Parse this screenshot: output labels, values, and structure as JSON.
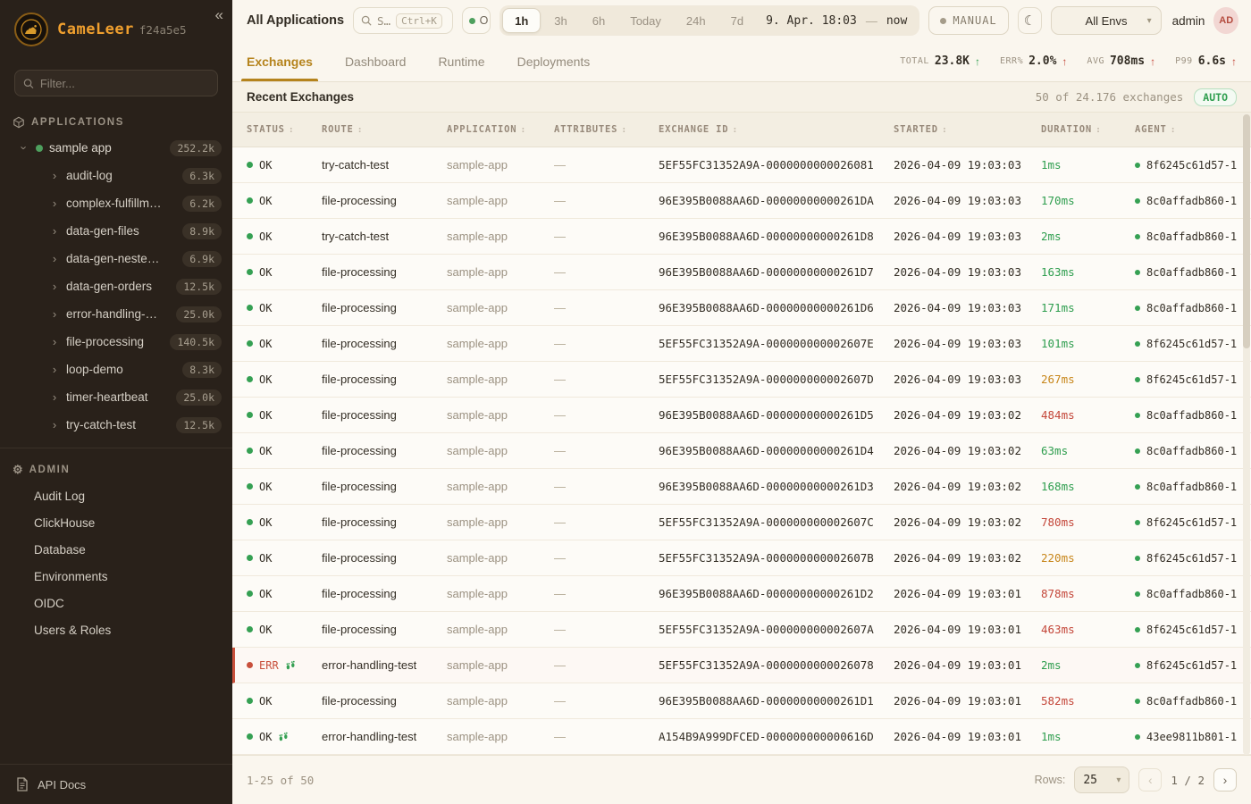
{
  "icons": {
    "collapse": "«",
    "moon": "☾",
    "gear": "⚙",
    "caret_down": "▾",
    "chevron": "›",
    "prev": "‹",
    "next": "›",
    "sort": ":",
    "up_arrow": "↑"
  },
  "sidebar": {
    "logo_text": "CameLeer",
    "logo_suffix": "f24a5e5",
    "filter_placeholder": "Filter...",
    "applications_header": "APPLICATIONS",
    "app_tree": [
      {
        "label": "sample app",
        "count": "252.2k",
        "type": "parent"
      },
      {
        "label": "audit-log",
        "count": "6.3k",
        "type": "child"
      },
      {
        "label": "complex-fulfillm…",
        "count": "6.2k",
        "type": "child"
      },
      {
        "label": "data-gen-files",
        "count": "8.9k",
        "type": "child"
      },
      {
        "label": "data-gen-neste…",
        "count": "6.9k",
        "type": "child"
      },
      {
        "label": "data-gen-orders",
        "count": "12.5k",
        "type": "child"
      },
      {
        "label": "error-handling-…",
        "count": "25.0k",
        "type": "child"
      },
      {
        "label": "file-processing",
        "count": "140.5k",
        "type": "child"
      },
      {
        "label": "loop-demo",
        "count": "8.3k",
        "type": "child"
      },
      {
        "label": "timer-heartbeat",
        "count": "25.0k",
        "type": "child"
      },
      {
        "label": "try-catch-test",
        "count": "12.5k",
        "type": "child"
      }
    ],
    "admin_header": "ADMIN",
    "admin_items": [
      "Audit Log",
      "ClickHouse",
      "Database",
      "Environments",
      "OIDC",
      "Users & Roles"
    ],
    "api_docs_label": "API Docs"
  },
  "topbar": {
    "scope": "All Applications",
    "search_text": "S…",
    "search_kbd": "Ctrl+K",
    "live_text": "O",
    "ranges": [
      "1h",
      "3h",
      "6h",
      "Today",
      "24h",
      "7d"
    ],
    "active_range": "1h",
    "range_from": "9. Apr. 18:03",
    "range_sep": "—",
    "range_to": "now",
    "manual_label": "MANUAL",
    "env_selected": "All Envs",
    "user_name": "admin",
    "avatar_initials": "AD"
  },
  "tabs": {
    "items": [
      "Exchanges",
      "Dashboard",
      "Runtime",
      "Deployments"
    ],
    "active": "Exchanges"
  },
  "stats": [
    {
      "label": "TOTAL",
      "value": "23.8K",
      "arrow": "↑",
      "arrow_color": "green"
    },
    {
      "label": "ERR%",
      "value": "2.0%",
      "arrow": "↑",
      "arrow_color": "red"
    },
    {
      "label": "AVG",
      "value": "708ms",
      "arrow": "↑",
      "arrow_color": "red"
    },
    {
      "label": "P99",
      "value": "6.6s",
      "arrow": "↑",
      "arrow_color": "red"
    }
  ],
  "recent": {
    "title": "Recent Exchanges",
    "meta": "50 of 24.176 exchanges",
    "auto_label": "AUTO"
  },
  "table": {
    "columns": [
      "STATUS",
      "ROUTE",
      "APPLICATION",
      "ATTRIBUTES",
      "EXCHANGE ID",
      "STARTED",
      "DURATION",
      "AGENT"
    ],
    "rows": [
      {
        "status": "OK",
        "error": false,
        "steps": false,
        "route": "try-catch-test",
        "application": "sample-app",
        "attributes": "—",
        "exchange_id": "5EF55FC31352A9A-0000000000026081",
        "started": "2026-04-09 19:03:03",
        "duration": "1ms",
        "duration_level": "fast",
        "agent": "8f6245c61d57-1"
      },
      {
        "status": "OK",
        "error": false,
        "steps": false,
        "route": "file-processing",
        "application": "sample-app",
        "attributes": "—",
        "exchange_id": "96E395B0088AA6D-00000000000261DA",
        "started": "2026-04-09 19:03:03",
        "duration": "170ms",
        "duration_level": "fast",
        "agent": "8c0affadb860-1"
      },
      {
        "status": "OK",
        "error": false,
        "steps": false,
        "route": "try-catch-test",
        "application": "sample-app",
        "attributes": "—",
        "exchange_id": "96E395B0088AA6D-00000000000261D8",
        "started": "2026-04-09 19:03:03",
        "duration": "2ms",
        "duration_level": "fast",
        "agent": "8c0affadb860-1"
      },
      {
        "status": "OK",
        "error": false,
        "steps": false,
        "route": "file-processing",
        "application": "sample-app",
        "attributes": "—",
        "exchange_id": "96E395B0088AA6D-00000000000261D7",
        "started": "2026-04-09 19:03:03",
        "duration": "163ms",
        "duration_level": "fast",
        "agent": "8c0affadb860-1"
      },
      {
        "status": "OK",
        "error": false,
        "steps": false,
        "route": "file-processing",
        "application": "sample-app",
        "attributes": "—",
        "exchange_id": "96E395B0088AA6D-00000000000261D6",
        "started": "2026-04-09 19:03:03",
        "duration": "171ms",
        "duration_level": "fast",
        "agent": "8c0affadb860-1"
      },
      {
        "status": "OK",
        "error": false,
        "steps": false,
        "route": "file-processing",
        "application": "sample-app",
        "attributes": "—",
        "exchange_id": "5EF55FC31352A9A-000000000002607E",
        "started": "2026-04-09 19:03:03",
        "duration": "101ms",
        "duration_level": "fast",
        "agent": "8f6245c61d57-1"
      },
      {
        "status": "OK",
        "error": false,
        "steps": false,
        "route": "file-processing",
        "application": "sample-app",
        "attributes": "—",
        "exchange_id": "5EF55FC31352A9A-000000000002607D",
        "started": "2026-04-09 19:03:03",
        "duration": "267ms",
        "duration_level": "warn",
        "agent": "8f6245c61d57-1"
      },
      {
        "status": "OK",
        "error": false,
        "steps": false,
        "route": "file-processing",
        "application": "sample-app",
        "attributes": "—",
        "exchange_id": "96E395B0088AA6D-00000000000261D5",
        "started": "2026-04-09 19:03:02",
        "duration": "484ms",
        "duration_level": "slow",
        "agent": "8c0affadb860-1"
      },
      {
        "status": "OK",
        "error": false,
        "steps": false,
        "route": "file-processing",
        "application": "sample-app",
        "attributes": "—",
        "exchange_id": "96E395B0088AA6D-00000000000261D4",
        "started": "2026-04-09 19:03:02",
        "duration": "63ms",
        "duration_level": "fast",
        "agent": "8c0affadb860-1"
      },
      {
        "status": "OK",
        "error": false,
        "steps": false,
        "route": "file-processing",
        "application": "sample-app",
        "attributes": "—",
        "exchange_id": "96E395B0088AA6D-00000000000261D3",
        "started": "2026-04-09 19:03:02",
        "duration": "168ms",
        "duration_level": "fast",
        "agent": "8c0affadb860-1"
      },
      {
        "status": "OK",
        "error": false,
        "steps": false,
        "route": "file-processing",
        "application": "sample-app",
        "attributes": "—",
        "exchange_id": "5EF55FC31352A9A-000000000002607C",
        "started": "2026-04-09 19:03:02",
        "duration": "780ms",
        "duration_level": "slow",
        "agent": "8f6245c61d57-1"
      },
      {
        "status": "OK",
        "error": false,
        "steps": false,
        "route": "file-processing",
        "application": "sample-app",
        "attributes": "—",
        "exchange_id": "5EF55FC31352A9A-000000000002607B",
        "started": "2026-04-09 19:03:02",
        "duration": "220ms",
        "duration_level": "warn",
        "agent": "8f6245c61d57-1"
      },
      {
        "status": "OK",
        "error": false,
        "steps": false,
        "route": "file-processing",
        "application": "sample-app",
        "attributes": "—",
        "exchange_id": "96E395B0088AA6D-00000000000261D2",
        "started": "2026-04-09 19:03:01",
        "duration": "878ms",
        "duration_level": "slow",
        "agent": "8c0affadb860-1"
      },
      {
        "status": "OK",
        "error": false,
        "steps": false,
        "route": "file-processing",
        "application": "sample-app",
        "attributes": "—",
        "exchange_id": "5EF55FC31352A9A-000000000002607A",
        "started": "2026-04-09 19:03:01",
        "duration": "463ms",
        "duration_level": "slow",
        "agent": "8f6245c61d57-1"
      },
      {
        "status": "ERR",
        "error": true,
        "steps": true,
        "route": "error-handling-test",
        "application": "sample-app",
        "attributes": "—",
        "exchange_id": "5EF55FC31352A9A-0000000000026078",
        "started": "2026-04-09 19:03:01",
        "duration": "2ms",
        "duration_level": "fast",
        "agent": "8f6245c61d57-1"
      },
      {
        "status": "OK",
        "error": false,
        "steps": false,
        "route": "file-processing",
        "application": "sample-app",
        "attributes": "—",
        "exchange_id": "96E395B0088AA6D-00000000000261D1",
        "started": "2026-04-09 19:03:01",
        "duration": "582ms",
        "duration_level": "slow",
        "agent": "8c0affadb860-1"
      },
      {
        "status": "OK",
        "error": false,
        "steps": true,
        "route": "error-handling-test",
        "application": "sample-app",
        "attributes": "—",
        "exchange_id": "A154B9A999DFCED-000000000000616D",
        "started": "2026-04-09 19:03:01",
        "duration": "1ms",
        "duration_level": "fast",
        "agent": "43ee9811b801-1"
      }
    ]
  },
  "footer": {
    "range_label": "1-25 of 50",
    "rows_label": "Rows:",
    "rows_value": "25",
    "page_indicator": "1 / 2"
  }
}
